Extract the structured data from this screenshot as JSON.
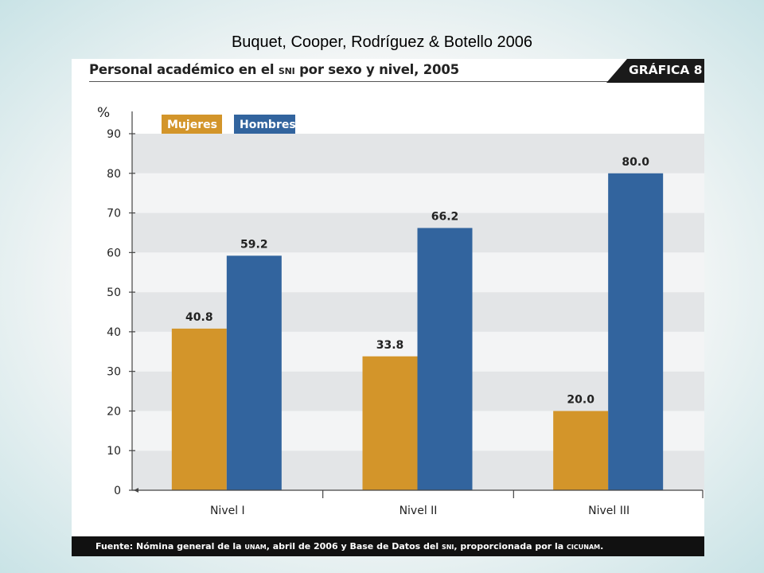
{
  "slide": {
    "title": "Buquet, Cooper, Rodríguez & Botello 2006"
  },
  "panel": {
    "title_part1": "Personal académico en el ",
    "title_sc": "SNI",
    "title_part2": " por sexo y nivel, 2005",
    "tag": "GRÁFICA 8"
  },
  "footer": {
    "part1": "Fuente: Nómina general de la ",
    "sc1": "UNAM",
    "part2": ", abril de 2006 y Base de Datos del ",
    "sc2": "SNI",
    "part3": ", proporcionada por la ",
    "sc3": "CICUNAM",
    "part4": "."
  },
  "colors": {
    "mujeres": "#D3952A",
    "hombres": "#32649E",
    "band_dark": "#E3E5E7",
    "band_light": "#F3F4F5",
    "footer_bg": "#111111"
  },
  "chart_data": {
    "type": "bar",
    "categories": [
      "Nivel I",
      "Nivel II",
      "Nivel III"
    ],
    "series": [
      {
        "name": "Mujeres",
        "values": [
          40.8,
          33.8,
          20.0
        ],
        "labels": [
          "40.8",
          "33.8",
          "20.0"
        ]
      },
      {
        "name": "Hombres",
        "values": [
          59.2,
          66.2,
          80.0
        ],
        "labels": [
          "59.2",
          "66.2",
          "80.0"
        ]
      }
    ],
    "ylabel": "%",
    "ylim": [
      0,
      90
    ],
    "yticks": [
      0,
      10,
      20,
      30,
      40,
      50,
      60,
      70,
      80,
      90
    ],
    "legend_placement": "top-left",
    "grid": "alternating horizontal bands"
  }
}
